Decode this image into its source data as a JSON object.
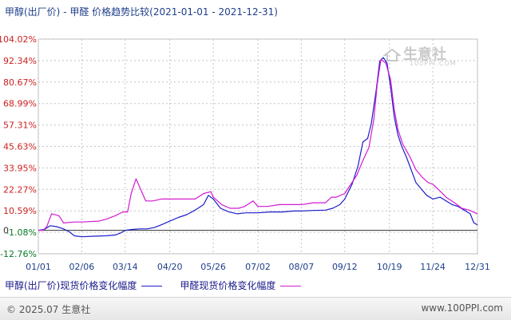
{
  "header": {
    "title": "甲醇(出厂价) - 甲醛 价格趋势比较(2021-01-01 - 2021-12-31)"
  },
  "watermark": {
    "text": "生意社",
    "sub": "100PPI.COM"
  },
  "footer": {
    "copyright": "© 2025.07 生意社",
    "site": "www.100PPI.com"
  },
  "colors": {
    "series_1": "#1c1ccc",
    "series_2": "#d21ad2",
    "axis_negative": "#0a7a28",
    "axis_positive": "#cc2222",
    "zero_line": "#333333",
    "grid": "#c4c4c4"
  },
  "chart_data": {
    "type": "line",
    "title": "甲醇(出厂价) - 甲醛 价格趋势比较(2021-01-01 - 2021-12-31)",
    "xlabel": "",
    "ylabel": "",
    "x_tick_labels": [
      "01/01",
      "02/06",
      "03/14",
      "04/20",
      "05/26",
      "07/02",
      "08/07",
      "09/12",
      "10/19",
      "11/24",
      "12/31"
    ],
    "x_tick_dates": [
      "2021-01-01",
      "2021-02-06",
      "2021-03-14",
      "2021-04-20",
      "2021-05-26",
      "2021-07-02",
      "2021-08-07",
      "2021-09-12",
      "2021-10-19",
      "2021-11-24",
      "2021-12-31"
    ],
    "x_range": [
      "2021-01-01",
      "2021-12-31"
    ],
    "y_tick_labels": [
      "-12.76%",
      "-1.08%",
      "10.59%",
      "22.27%",
      "33.95%",
      "45.63%",
      "57.31%",
      "68.99%",
      "80.67%",
      "92.34%",
      "104.02%"
    ],
    "y_tick_values": [
      -12.76,
      -1.08,
      10.59,
      22.27,
      33.95,
      45.63,
      57.31,
      68.99,
      80.67,
      92.34,
      104.02
    ],
    "ylim": [
      -12.76,
      104.02
    ],
    "zero_label": "0",
    "grid": true,
    "legend_position": "bottom",
    "series": [
      {
        "name": "甲醇(出厂价)现货价格变化幅度",
        "color": "#1c1ccc",
        "points": [
          [
            "2021-01-01",
            0
          ],
          [
            "2021-01-06",
            0.5
          ],
          [
            "2021-01-11",
            2.5
          ],
          [
            "2021-01-16",
            2.0
          ],
          [
            "2021-01-21",
            1.0
          ],
          [
            "2021-01-26",
            -0.5
          ],
          [
            "2021-01-31",
            -3.0
          ],
          [
            "2021-02-06",
            -3.5
          ],
          [
            "2021-02-16",
            -3.2
          ],
          [
            "2021-02-26",
            -3.0
          ],
          [
            "2021-03-06",
            -2.5
          ],
          [
            "2021-03-10",
            -1.5
          ],
          [
            "2021-03-14",
            0
          ],
          [
            "2021-03-20",
            0.5
          ],
          [
            "2021-03-26",
            0.8
          ],
          [
            "2021-04-01",
            0.8
          ],
          [
            "2021-04-07",
            1.5
          ],
          [
            "2021-04-13",
            3.0
          ],
          [
            "2021-04-20",
            5.0
          ],
          [
            "2021-04-27",
            7.0
          ],
          [
            "2021-05-04",
            8.5
          ],
          [
            "2021-05-11",
            11.0
          ],
          [
            "2021-05-18",
            14.0
          ],
          [
            "2021-05-22",
            19.0
          ],
          [
            "2021-05-26",
            17.0
          ],
          [
            "2021-06-01",
            12.0
          ],
          [
            "2021-06-08",
            10.0
          ],
          [
            "2021-06-15",
            9.0
          ],
          [
            "2021-06-22",
            9.5
          ],
          [
            "2021-07-02",
            9.5
          ],
          [
            "2021-07-12",
            10.0
          ],
          [
            "2021-07-22",
            10.0
          ],
          [
            "2021-08-01",
            10.5
          ],
          [
            "2021-08-07",
            10.5
          ],
          [
            "2021-08-17",
            10.8
          ],
          [
            "2021-08-27",
            11.0
          ],
          [
            "2021-09-02",
            12.0
          ],
          [
            "2021-09-08",
            14.0
          ],
          [
            "2021-09-12",
            17.0
          ],
          [
            "2021-09-18",
            25.0
          ],
          [
            "2021-09-23",
            35.0
          ],
          [
            "2021-09-27",
            48.0
          ],
          [
            "2021-10-01",
            50.0
          ],
          [
            "2021-10-04",
            58.0
          ],
          [
            "2021-10-08",
            76.0
          ],
          [
            "2021-10-11",
            92.0
          ],
          [
            "2021-10-14",
            94.0
          ],
          [
            "2021-10-17",
            91.0
          ],
          [
            "2021-10-20",
            78.0
          ],
          [
            "2021-10-23",
            62.0
          ],
          [
            "2021-10-26",
            52.0
          ],
          [
            "2021-10-29",
            46.0
          ],
          [
            "2021-11-02",
            40.0
          ],
          [
            "2021-11-06",
            33.0
          ],
          [
            "2021-11-10",
            26.0
          ],
          [
            "2021-11-15",
            22.0
          ],
          [
            "2021-11-19",
            19.0
          ],
          [
            "2021-11-24",
            17.0
          ],
          [
            "2021-11-30",
            18.0
          ],
          [
            "2021-12-05",
            16.0
          ],
          [
            "2021-12-10",
            14.0
          ],
          [
            "2021-12-15",
            13.0
          ],
          [
            "2021-12-20",
            11.0
          ],
          [
            "2021-12-25",
            9.0
          ],
          [
            "2021-12-28",
            4.0
          ],
          [
            "2021-12-31",
            3.0
          ]
        ]
      },
      {
        "name": "甲醛现货价格变化幅度",
        "color": "#d21ad2",
        "points": [
          [
            "2021-01-01",
            0
          ],
          [
            "2021-01-05",
            0
          ],
          [
            "2021-01-08",
            2.0
          ],
          [
            "2021-01-12",
            9.0
          ],
          [
            "2021-01-18",
            8.0
          ],
          [
            "2021-01-22",
            4.0
          ],
          [
            "2021-01-31",
            4.5
          ],
          [
            "2021-02-06",
            4.5
          ],
          [
            "2021-02-20",
            5.0
          ],
          [
            "2021-02-26",
            6.0
          ],
          [
            "2021-03-06",
            8.0
          ],
          [
            "2021-03-12",
            10.0
          ],
          [
            "2021-03-16",
            10.0
          ],
          [
            "2021-03-19",
            20.0
          ],
          [
            "2021-03-23",
            28.0
          ],
          [
            "2021-03-27",
            22.0
          ],
          [
            "2021-03-31",
            16.0
          ],
          [
            "2021-04-06",
            16.0
          ],
          [
            "2021-04-13",
            17.0
          ],
          [
            "2021-04-20",
            17.0
          ],
          [
            "2021-05-01",
            17.0
          ],
          [
            "2021-05-11",
            17.0
          ],
          [
            "2021-05-18",
            20.0
          ],
          [
            "2021-05-24",
            21.0
          ],
          [
            "2021-05-26",
            18.0
          ],
          [
            "2021-06-02",
            14.0
          ],
          [
            "2021-06-09",
            12.0
          ],
          [
            "2021-06-16",
            12.0
          ],
          [
            "2021-06-21",
            13.0
          ],
          [
            "2021-06-28",
            16.0
          ],
          [
            "2021-07-02",
            13.0
          ],
          [
            "2021-07-10",
            13.0
          ],
          [
            "2021-07-20",
            14.0
          ],
          [
            "2021-08-01",
            14.0
          ],
          [
            "2021-08-07",
            14.0
          ],
          [
            "2021-08-17",
            15.0
          ],
          [
            "2021-08-27",
            15.0
          ],
          [
            "2021-09-01",
            18.0
          ],
          [
            "2021-09-05",
            18.0
          ],
          [
            "2021-09-12",
            20.0
          ],
          [
            "2021-09-17",
            25.0
          ],
          [
            "2021-09-22",
            30.0
          ],
          [
            "2021-09-27",
            38.0
          ],
          [
            "2021-10-02",
            45.0
          ],
          [
            "2021-10-06",
            60.0
          ],
          [
            "2021-10-09",
            80.0
          ],
          [
            "2021-10-12",
            93.0
          ],
          [
            "2021-10-16",
            91.0
          ],
          [
            "2021-10-20",
            82.0
          ],
          [
            "2021-10-23",
            66.0
          ],
          [
            "2021-10-26",
            55.0
          ],
          [
            "2021-10-30",
            47.0
          ],
          [
            "2021-11-05",
            40.0
          ],
          [
            "2021-11-10",
            33.0
          ],
          [
            "2021-11-15",
            29.0
          ],
          [
            "2021-11-20",
            26.0
          ],
          [
            "2021-11-24",
            25.0
          ],
          [
            "2021-11-29",
            22.0
          ],
          [
            "2021-12-05",
            18.0
          ],
          [
            "2021-12-12",
            15.0
          ],
          [
            "2021-12-18",
            12.0
          ],
          [
            "2021-12-24",
            11.0
          ],
          [
            "2021-12-31",
            9.0
          ]
        ]
      }
    ]
  }
}
